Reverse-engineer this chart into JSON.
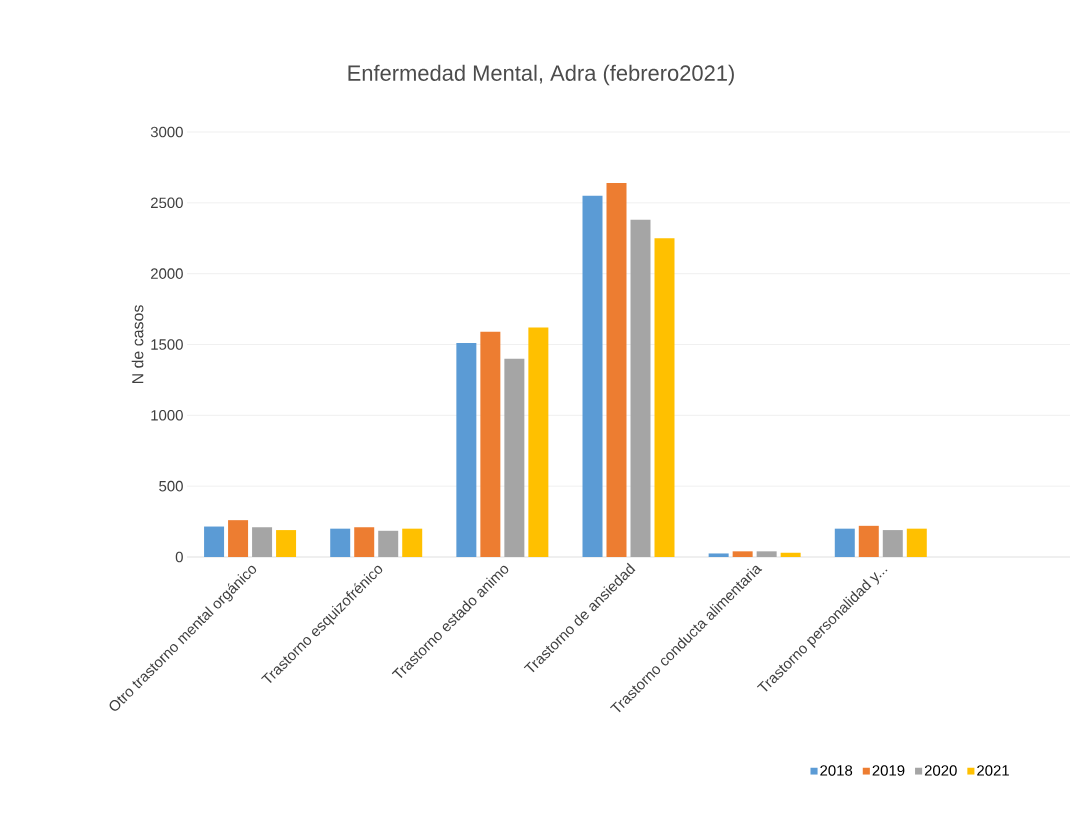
{
  "chart_data": {
    "type": "bar",
    "title": "Enfermedad Mental, Adra (febrero2021)",
    "ylabel": "N de casos",
    "categories": [
      "Otro trastorno mental orgánico",
      "Trastorno esquizofrénico",
      "Trastorno estado animo",
      "Trastorno de ansiedad",
      "Trastorno conducta alimentaria",
      "Trastorno personalidad y...",
      null
    ],
    "series": [
      {
        "name": "2018",
        "color": "#5b9bd5",
        "values": [
          215,
          200,
          1510,
          2550,
          25,
          200,
          null
        ]
      },
      {
        "name": "2019",
        "color": "#ed7d31",
        "values": [
          260,
          210,
          1590,
          2640,
          40,
          220,
          null
        ]
      },
      {
        "name": "2020",
        "color": "#a5a5a5",
        "values": [
          210,
          185,
          1400,
          2380,
          40,
          190,
          null
        ]
      },
      {
        "name": "2021",
        "color": "#ffc000",
        "values": [
          190,
          200,
          1620,
          2250,
          30,
          200,
          null
        ]
      }
    ],
    "ylim": [
      0,
      3000
    ],
    "yticks": [
      0,
      500,
      1000,
      1500,
      2000,
      2500,
      3000
    ],
    "grid": "y",
    "legend": "bottom"
  }
}
